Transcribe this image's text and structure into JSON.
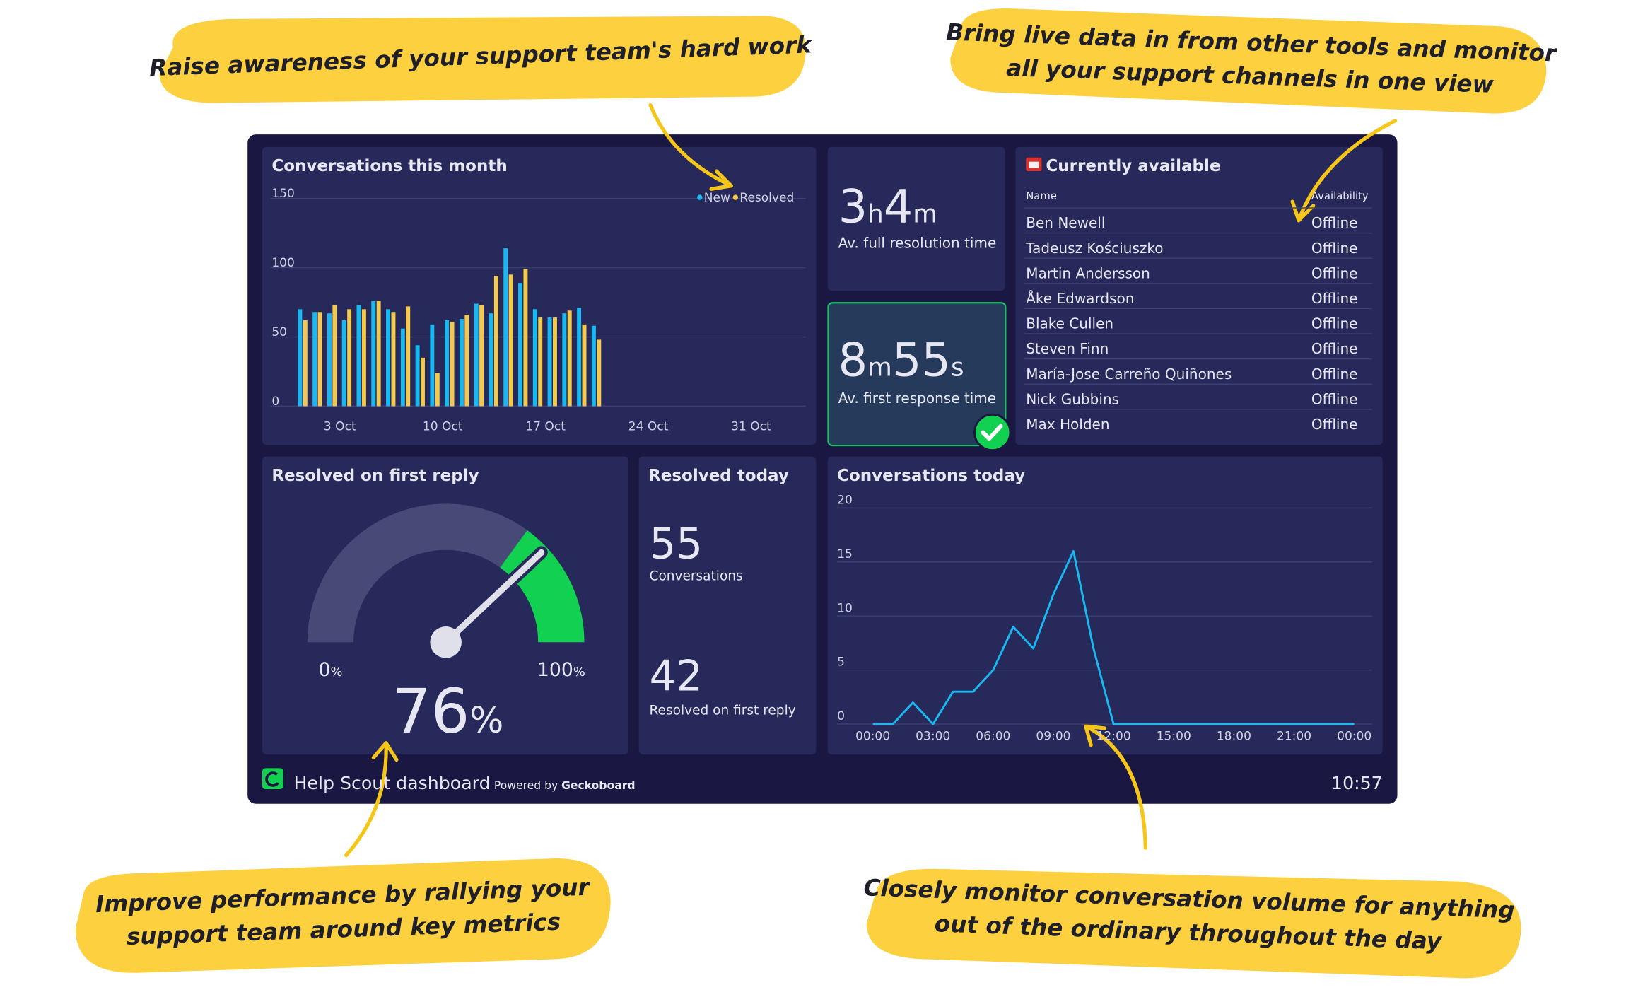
{
  "callouts": [
    {
      "lines": [
        "Raise awareness of your support team's hard work"
      ]
    },
    {
      "lines": [
        "Bring live data in from other tools and monitor",
        "all your support channels in one view"
      ]
    },
    {
      "lines": [
        "Improve performance by rallying your",
        "support team around key metrics"
      ]
    },
    {
      "lines": [
        "Closely monitor conversation volume for anything",
        "out of the ordinary throughout the day"
      ]
    }
  ],
  "chart_data": [
    {
      "type": "bar",
      "title": "Conversations this month",
      "categories": [
        null,
        null,
        "3 Oct",
        null,
        null,
        null,
        null,
        null,
        null,
        "10 Oct",
        null,
        null,
        null,
        null,
        null,
        null,
        "17 Oct",
        null,
        null,
        null,
        null,
        null,
        null,
        "24 Oct",
        null,
        null,
        null,
        null,
        null,
        null,
        "31 Oct"
      ],
      "series": [
        {
          "name": "New",
          "color": "#1ab8f0",
          "values": [
            70,
            68,
            67,
            62,
            73,
            76,
            70,
            56,
            44,
            59,
            62,
            63,
            74,
            67,
            114,
            89,
            70,
            64,
            67,
            71,
            58,
            null,
            null,
            null,
            null,
            null,
            null,
            null,
            null,
            null,
            null
          ]
        },
        {
          "name": "Resolved",
          "color": "#f2c94c",
          "values": [
            62,
            68,
            73,
            70,
            70,
            76,
            68,
            72,
            35,
            24,
            61,
            66,
            73,
            94,
            95,
            99,
            64,
            64,
            69,
            59,
            48,
            null,
            null,
            null,
            null,
            null,
            null,
            null,
            null,
            null,
            null
          ]
        }
      ],
      "ylim": [
        0,
        150
      ],
      "yticks": [
        0,
        50,
        100,
        150
      ],
      "grid": true
    },
    {
      "type": "line",
      "title": "Conversations today",
      "categories": [
        "00:00",
        null,
        null,
        "03:00",
        null,
        null,
        "06:00",
        null,
        null,
        "09:00",
        null,
        null,
        "12:00",
        null,
        null,
        "15:00",
        null,
        null,
        "18:00",
        null,
        null,
        "21:00",
        null,
        null,
        "00:00"
      ],
      "series": [
        {
          "color": "#1ab8f0",
          "values": [
            0,
            0,
            2,
            0,
            3,
            3,
            5,
            9,
            7,
            12,
            16,
            7,
            0,
            0,
            0,
            0,
            0,
            0,
            0,
            0,
            0,
            0,
            0,
            0,
            0
          ]
        }
      ],
      "ylim": [
        0,
        20
      ],
      "yticks": [
        0,
        5,
        10,
        15,
        20
      ],
      "grid": true
    },
    {
      "type": "gauge",
      "title": "Resolved on first reply",
      "value": 76,
      "min": 0,
      "max": 100,
      "threshold": 70,
      "unit": "%",
      "color": "#12d150"
    }
  ],
  "metrics": [
    {
      "parts": [
        {
          "value": 3,
          "unit": "h"
        },
        {
          "value": 4,
          "unit": "m"
        }
      ],
      "label": "Av. full resolution time"
    },
    {
      "parts": [
        {
          "value": 8,
          "unit": "m"
        },
        {
          "value": 55,
          "unit": "s"
        }
      ],
      "label": "Av. first response time"
    }
  ],
  "resolved_today": {
    "title": "Resolved today",
    "items": [
      {
        "value": 55,
        "label": "Conversations"
      },
      {
        "value": 42,
        "label": "Resolved on first reply"
      }
    ]
  },
  "table": {
    "title": "Currently available",
    "columns": [
      "Name",
      "Availability"
    ],
    "rows": [
      [
        "Ben Newell",
        "Offline"
      ],
      [
        "Tadeusz Kościuszko",
        "Offline"
      ],
      [
        "Martin Andersson",
        "Offline"
      ],
      [
        "Åke Edwardson",
        "Offline"
      ],
      [
        "Blake Cullen",
        "Offline"
      ],
      [
        "Steven Finn",
        "Offline"
      ],
      [
        "María-Jose Carreño Quiñones",
        "Offline"
      ],
      [
        "Nick Gubbins",
        "Offline"
      ],
      [
        "Max Holden",
        "Offline"
      ]
    ]
  },
  "footer": {
    "name": "Help Scout dashboard",
    "powered_by": "Powered by",
    "brand": "Geckoboard",
    "time": "10:57"
  }
}
